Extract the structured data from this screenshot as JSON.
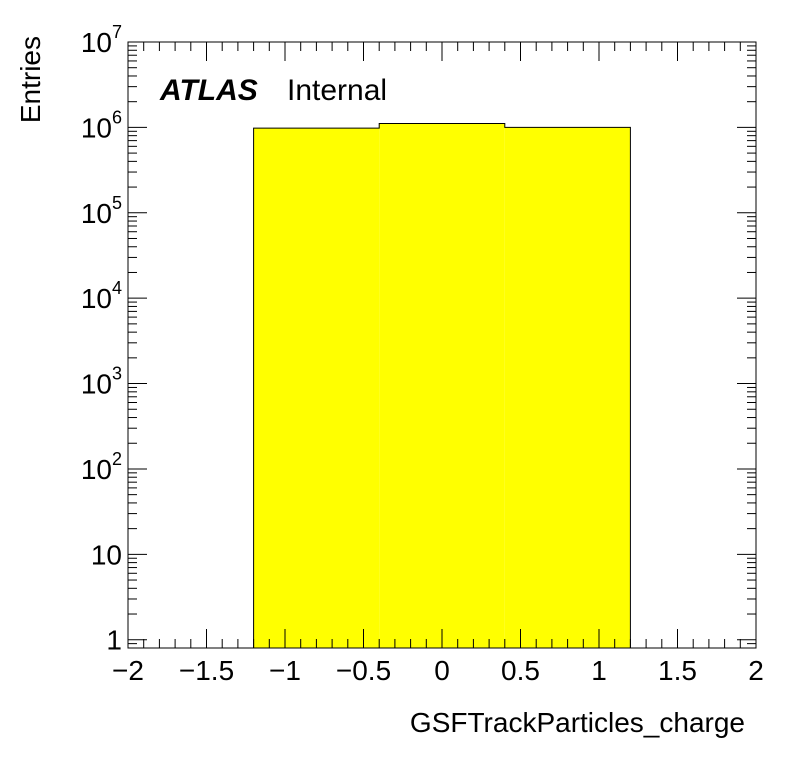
{
  "chart_data": {
    "type": "bar",
    "title": "",
    "xlabel": "GSFTrackParticles_charge",
    "ylabel": "Entries",
    "x_scale": "linear",
    "y_scale": "log",
    "xlim": [
      -2,
      2
    ],
    "ylim": [
      0.8,
      10000000
    ],
    "grid": false,
    "legend": "none",
    "bar_color": "#ffff00",
    "edge_color": "#000000",
    "bin_edges": [
      -1.2,
      -0.4,
      0.4,
      1.2
    ],
    "values": [
      980000,
      1110000,
      1000000
    ],
    "x_ticks": [
      {
        "value": -2,
        "label": "−2"
      },
      {
        "value": -1.5,
        "label": "−1.5"
      },
      {
        "value": -1,
        "label": "−1"
      },
      {
        "value": -0.5,
        "label": "−0.5"
      },
      {
        "value": 0,
        "label": "0"
      },
      {
        "value": 0.5,
        "label": "0.5"
      },
      {
        "value": 1,
        "label": "1"
      },
      {
        "value": 1.5,
        "label": "1.5"
      },
      {
        "value": 2,
        "label": "2"
      }
    ],
    "y_ticks": [
      {
        "value": 1,
        "base": "1",
        "exp": ""
      },
      {
        "value": 10,
        "base": "10",
        "exp": ""
      },
      {
        "value": 100,
        "base": "10",
        "exp": "2"
      },
      {
        "value": 1000,
        "base": "10",
        "exp": "3"
      },
      {
        "value": 10000,
        "base": "10",
        "exp": "4"
      },
      {
        "value": 100000,
        "base": "10",
        "exp": "5"
      },
      {
        "value": 1000000,
        "base": "10",
        "exp": "6"
      },
      {
        "value": 10000000,
        "base": "10",
        "exp": "7"
      }
    ],
    "annotations": {
      "experiment": "ATLAS",
      "status": "Internal"
    }
  }
}
